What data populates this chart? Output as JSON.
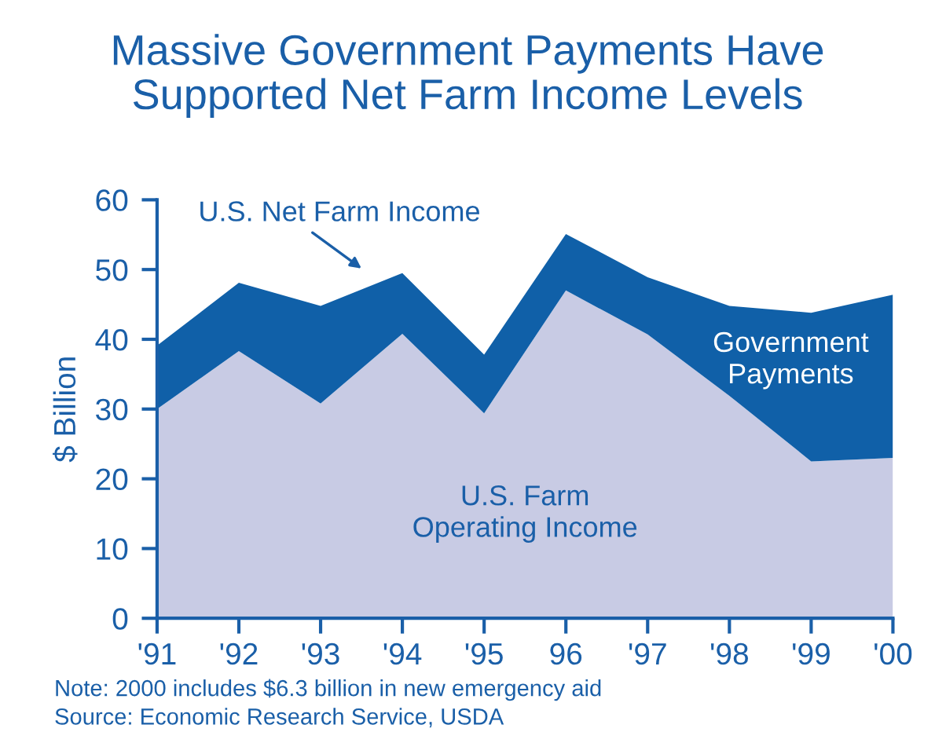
{
  "chart_data": {
    "type": "area",
    "stacked": true,
    "title": "Massive Government Payments Have\nSupported Net Farm Income Levels",
    "ylabel": "$ Billion",
    "categories": [
      "'91",
      "'92",
      "'93",
      "'94",
      "'95",
      "96",
      "'97",
      "'98",
      "'99",
      "'00"
    ],
    "series": [
      {
        "name": "U.S. Farm\nOperating Income",
        "color": "#c8cbe4",
        "values": [
          30.0,
          38.3,
          30.8,
          40.8,
          29.4,
          47.0,
          40.7,
          31.9,
          22.5,
          23.0
        ]
      },
      {
        "name": "Government\nPayments",
        "color": "#1060a8",
        "values": [
          9.1,
          9.8,
          14.0,
          8.7,
          8.4,
          8.1,
          8.2,
          12.9,
          21.3,
          23.4
        ]
      }
    ],
    "ylim": [
      0,
      60
    ],
    "yticks": [
      0,
      10,
      20,
      30,
      40,
      50,
      60
    ],
    "grid": false,
    "legend": false,
    "annotations": [
      "U.S. Net Farm Income",
      "Note: 2000 includes $6.3 billion in new emergency aid",
      "Source: Economic Research Service, USDA"
    ]
  }
}
